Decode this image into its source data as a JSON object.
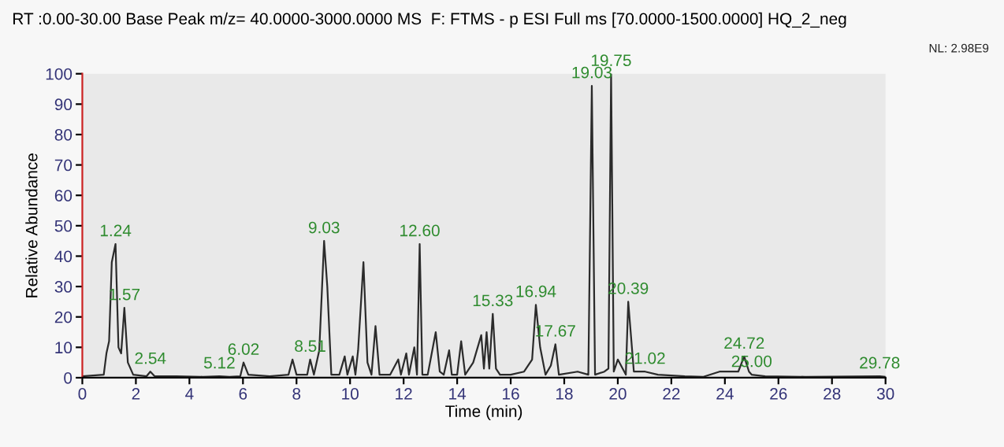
{
  "chart_data": {
    "type": "line",
    "title": "RT :0.00-30.00 Base Peak m/z= 40.0000-3000.0000 MS  F: FTMS - p ESI Full ms [70.0000-1500.0000] HQ_2_neg",
    "xlabel": "Time (min)",
    "ylabel": "Relative Abundance",
    "xlim": [
      0,
      30
    ],
    "xticks": [
      0,
      2,
      4,
      6,
      8,
      10,
      12,
      14,
      16,
      18,
      20,
      22,
      24,
      26,
      28,
      30
    ],
    "ylim": [
      0,
      100
    ],
    "yticks": [
      0,
      10,
      20,
      30,
      40,
      50,
      60,
      70,
      80,
      90,
      100
    ],
    "grid": false,
    "legend": false,
    "marker": "none",
    "line_style": "solid",
    "series": [
      {
        "color": "#2b2b2b",
        "x": [
          0,
          0.8,
          0.9,
          1.0,
          1.1,
          1.24,
          1.35,
          1.45,
          1.57,
          1.7,
          1.9,
          2.4,
          2.54,
          2.7,
          3.5,
          4.5,
          5.12,
          5.5,
          5.9,
          6.02,
          6.2,
          7.0,
          7.7,
          7.85,
          8.0,
          8.4,
          8.51,
          8.65,
          8.85,
          9.03,
          9.15,
          9.3,
          9.6,
          9.8,
          9.9,
          10.1,
          10.2,
          10.3,
          10.5,
          10.65,
          10.8,
          10.95,
          11.1,
          11.5,
          11.8,
          11.9,
          12.1,
          12.2,
          12.4,
          12.5,
          12.6,
          12.7,
          12.9,
          13.2,
          13.35,
          13.5,
          13.7,
          13.8,
          14.0,
          14.15,
          14.3,
          14.6,
          14.9,
          15.0,
          15.1,
          15.2,
          15.33,
          15.45,
          15.6,
          16.0,
          16.5,
          16.8,
          16.94,
          17.1,
          17.3,
          17.5,
          17.67,
          17.8,
          18.5,
          18.9,
          19.03,
          19.15,
          19.5,
          19.65,
          19.75,
          19.85,
          20.0,
          20.3,
          20.39,
          20.6,
          21.02,
          21.5,
          22.5,
          23.2,
          23.8,
          24.5,
          24.72,
          24.9,
          25.0,
          25.5,
          27,
          29.78,
          30
        ],
        "values": [
          0.5,
          1,
          8,
          12,
          38,
          44,
          10,
          8,
          23,
          5,
          1,
          0.5,
          2,
          0.5,
          0.5,
          0.3,
          0.5,
          0.3,
          0.5,
          5,
          1,
          0.5,
          1,
          6,
          1,
          1,
          6,
          1,
          9,
          45,
          30,
          1,
          1,
          7,
          1,
          7,
          1,
          9,
          38,
          5,
          1,
          17,
          1,
          1,
          6,
          1,
          8,
          1,
          10,
          1,
          44,
          1,
          1,
          15,
          2,
          1,
          9,
          1,
          1,
          12,
          1,
          5,
          14,
          3,
          15,
          3,
          21,
          3,
          1,
          1,
          2,
          6,
          24,
          10,
          1,
          4,
          11,
          1,
          2,
          1,
          96,
          1,
          2,
          3,
          100,
          2,
          6,
          1,
          25,
          2,
          2,
          1,
          0.5,
          0.3,
          2,
          2,
          7,
          2,
          1,
          0.5,
          0.3,
          0.5,
          0.3
        ]
      }
    ],
    "annotations": [
      "NL: 2.98E9",
      {
        "text": "1.24",
        "x": 1.24,
        "y": 44
      },
      {
        "text": "1.57",
        "x": 1.57,
        "y": 23
      },
      {
        "text": "2.54",
        "x": 2.54,
        "y": 2
      },
      {
        "text": "5.12",
        "x": 5.12,
        "y": 0.5
      },
      {
        "text": "6.02",
        "x": 6.02,
        "y": 5
      },
      {
        "text": "8.51",
        "x": 8.51,
        "y": 6
      },
      {
        "text": "9.03",
        "x": 9.03,
        "y": 45
      },
      {
        "text": "12.60",
        "x": 12.6,
        "y": 44
      },
      {
        "text": "15.33",
        "x": 15.33,
        "y": 21
      },
      {
        "text": "16.94",
        "x": 16.94,
        "y": 24
      },
      {
        "text": "17.67",
        "x": 17.67,
        "y": 11
      },
      {
        "text": "19.03",
        "x": 19.03,
        "y": 96
      },
      {
        "text": "19.75",
        "x": 19.75,
        "y": 100
      },
      {
        "text": "20.39",
        "x": 20.39,
        "y": 25
      },
      {
        "text": "21.02",
        "x": 21.02,
        "y": 2
      },
      {
        "text": "24.72",
        "x": 24.72,
        "y": 7
      },
      {
        "text": "25.00",
        "x": 25.0,
        "y": 1
      },
      {
        "text": "29.78",
        "x": 29.78,
        "y": 0.5
      }
    ]
  }
}
